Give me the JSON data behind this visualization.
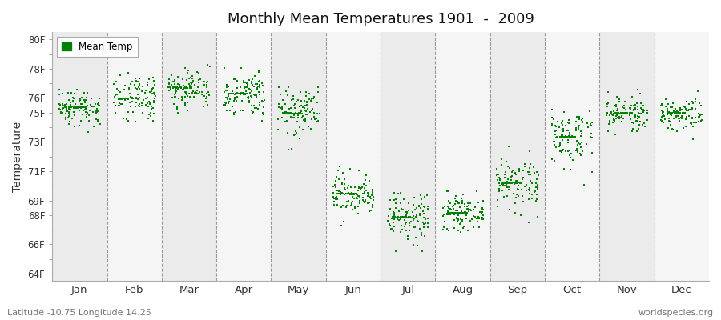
{
  "title": "Monthly Mean Temperatures 1901  -  2009",
  "ylabel": "Temperature",
  "xlabel_bottom": "Latitude -10.75 Longitude 14.25",
  "watermark": "worldspecies.org",
  "legend_label": "Mean Temp",
  "dot_color": "#008000",
  "background_colors": [
    "#ebebeb",
    "#f5f5f5"
  ],
  "yticks": [
    64,
    65,
    66,
    67,
    68,
    69,
    70,
    71,
    72,
    73,
    74,
    75,
    76,
    77,
    78,
    79,
    80
  ],
  "ytick_labels": [
    "64F",
    "",
    "66F",
    "",
    "68F",
    "69F",
    "",
    "71F",
    "",
    "73F",
    "",
    "75F",
    "76F",
    "",
    "78F",
    "",
    "80F"
  ],
  "ylim": [
    63.5,
    80.5
  ],
  "months": [
    "Jan",
    "Feb",
    "Mar",
    "Apr",
    "May",
    "Jun",
    "Jul",
    "Aug",
    "Sep",
    "Oct",
    "Nov",
    "Dec"
  ],
  "monthly_means": [
    75.35,
    75.95,
    76.7,
    76.3,
    74.95,
    69.45,
    67.85,
    68.15,
    70.2,
    73.35,
    74.95,
    75.0
  ],
  "monthly_stds": [
    0.65,
    0.75,
    0.7,
    0.75,
    0.85,
    0.75,
    0.8,
    0.55,
    0.9,
    0.95,
    0.55,
    0.55
  ],
  "n_years": 109,
  "seed": 42
}
